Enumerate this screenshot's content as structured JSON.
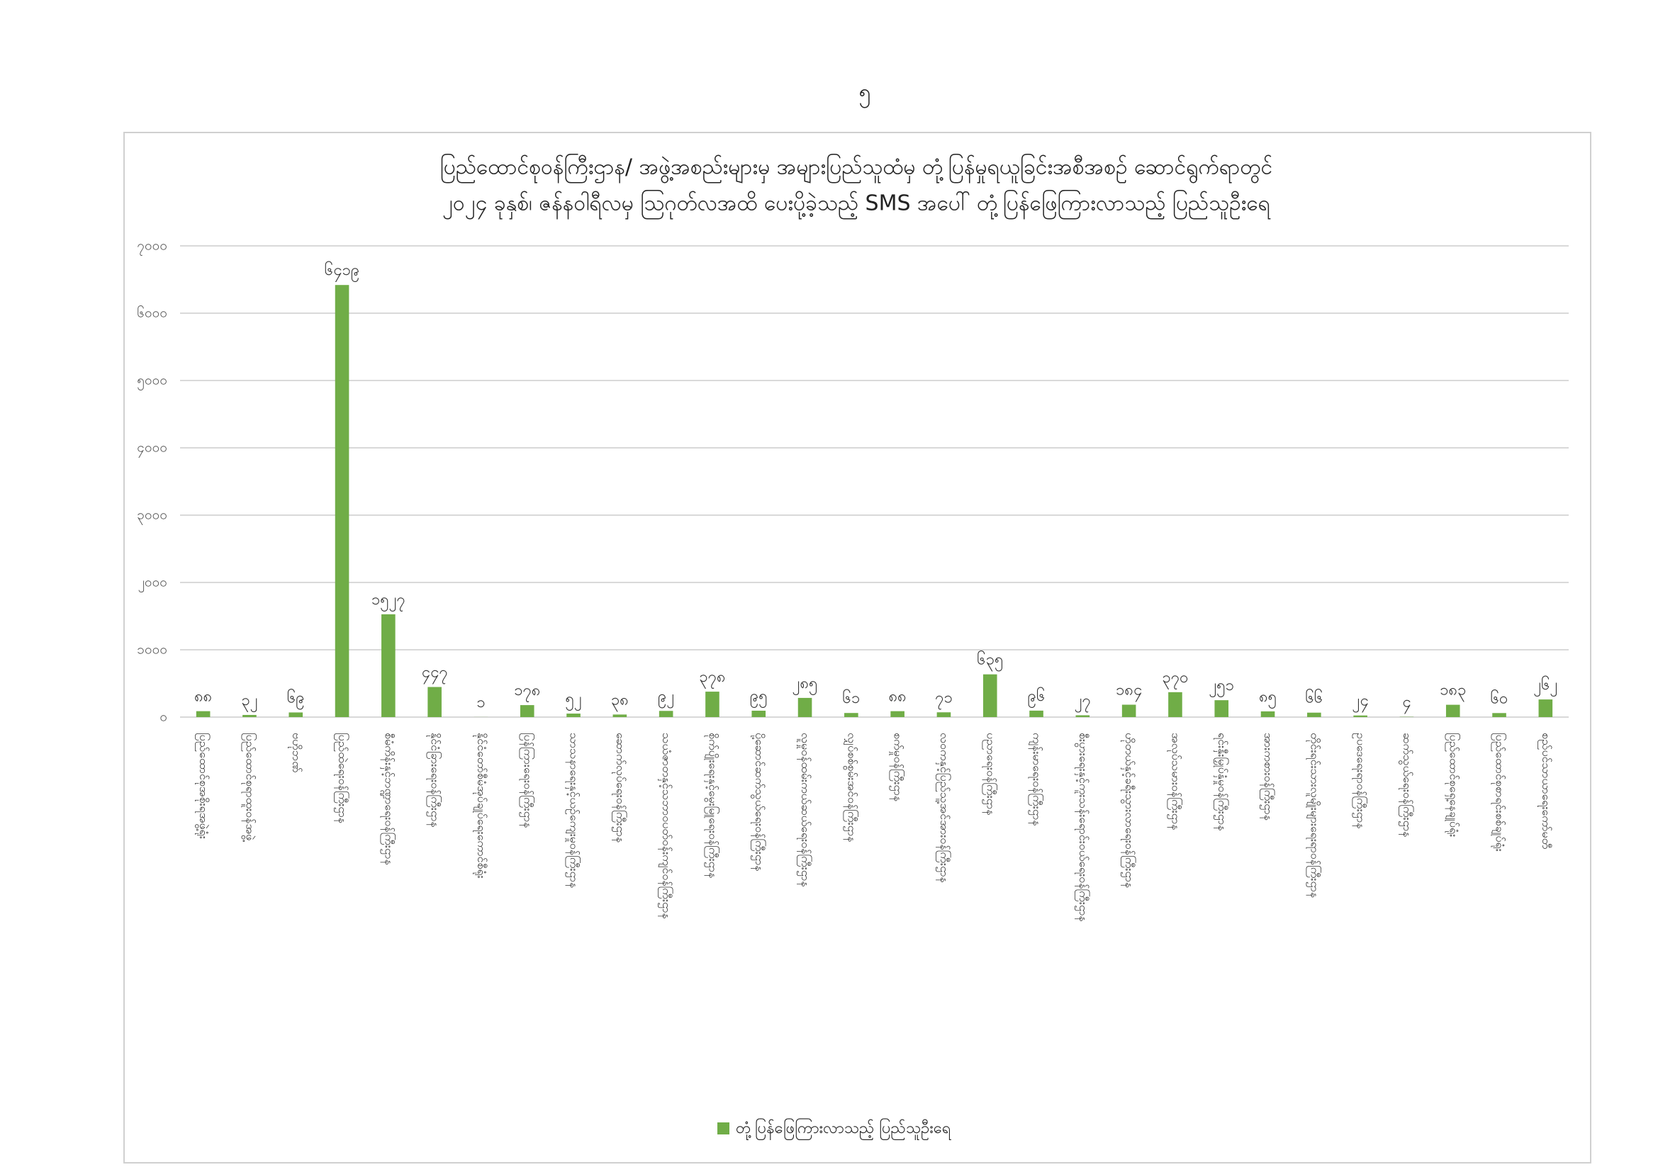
{
  "page_number": "၅",
  "chart_data": {
    "type": "bar",
    "title": [
      "ပြည်ထောင်စုဝန်ကြီးဌာန/ အဖွဲ့အစည်းများမှ အများပြည်သူထံမှ တုံ့ပြန်မှုရယူခြင်းအစီအစဉ် ဆောင်ရွက်ရာတွင်",
      "၂၀၂၄ ခုနှစ်၊ ဇန်နဝါရီလမှ ဩဂုတ်လအထိ ပေးပို့ခဲ့သည့် SMS အပေါ် တုံ့ပြန်ဖြေကြားလာသည့် ပြည်သူဦးရေ"
    ],
    "categories": [
      "ပြည်ထောင်စုအစိုးရအဖွဲ့ရုံး",
      "ပြည်ထောင်စုရာထူးဝန်အဖွဲ့",
      "ဗဟိုဘဏ်",
      "ပြည်ထဲရေးဝန်ကြီးဌာန",
      "စီမံကိန်းနှင့်ဘဏ္ဍာရေးဝန်ကြီးဌာန",
      "နိုင်ငံခြားရေးဝန်ကြီးဌာန",
      "နိုင်ငံတော်စီမံအုပ်ချုပ်ရေးကောင်စီရုံး",
      "ပြန်ကြားရေးဝန်ကြီးဌာန",
      "သာသနာရေးနှင့်ယဉ်ကျေးမှုဝန်ကြီးဌာန",
      "ဆောက်လုပ်ရေးဝန်ကြီးဌာန",
      "သယံဇာတနှင့်သဘာဝပတ်ဝန်းကျင်ဝန်ကြီးဌာန",
      "စိုက်ပျိုးရေးနှင့်မွေးမြူရေးဝန်ကြီးဌာန",
      "ပို့ဆောင်ဆက်သွယ်ရေးဝန်ကြီးဌာန",
      "လူမှုဝန်ထမ်းကယ်ဆယ်ရေးဝန်ကြီးဌာန",
      "လျှပ်စစ်စွမ်းအင်ဝန်ကြီးဌာန",
      "စက်မှုဝန်ကြီးဌာန",
      "လဝကနှင့်ပြည်သူ့အင်အားဝန်ကြီးဌာန",
      "ပညာရေးဝန်ကြီးဌာန",
      "ကျန်းမာရေးဝန်ကြီးဌာန",
      "စီးပွားရေးနှင့်ကူးသန်းရောင်းဝယ်ရေးဝန်ကြီးဌာန",
      "ဟိုတယ်နှင့်ခရီးသွားလာရေးဝန်ကြီးဌာန",
      "အလုပ်သမားဝန်ကြီးဌာန",
      "ရင်းနှီးမြှုပ်နှံမှုဝန်ကြီးဌာန",
      "အားကစားဝန်ကြီးဌာန",
      "တိုင်းရင်းသားလူမျိုးများရေးရာဝန်ကြီးဌာန",
      "ဥပဒေရေးရာဝန်ကြီးဌာန",
      "ဆက်သွယ်ရေးဝန်ကြီးဌာန",
      "ပြည်ထောင်စုရှေ့နေချုပ်ရုံး",
      "ပြည်ထောင်စုစာရင်းစစ်ချုပ်ရုံး",
      "စည်ပင်သာယာရေးကော်မတီ"
    ],
    "values": [
      88,
      32,
      69,
      6419,
      1527,
      447,
      1,
      178,
      52,
      38,
      92,
      378,
      95,
      285,
      61,
      88,
      71,
      635,
      96,
      27,
      184,
      370,
      251,
      85,
      66,
      24,
      4,
      183,
      60,
      262
    ],
    "value_labels": [
      "၈၈",
      "၃၂",
      "၆၉",
      "၆၄၁၉",
      "၁၅၂၇",
      "၄၄၇",
      "၁",
      "၁၇၈",
      "၅၂",
      "၃၈",
      "၉၂",
      "၃၇၈",
      "၉၅",
      "၂၈၅",
      "၆၁",
      "၈၈",
      "၇၁",
      "၆၃၅",
      "၉၆",
      "၂၇",
      "၁၈၄",
      "၃၇၀",
      "၂၅၁",
      "၈၅",
      "၆၆",
      "၂၄",
      "၄",
      "၁၈၃",
      "၆၀",
      "၂၆၂"
    ],
    "series_name": "တုံ့ပြန်ဖြေကြားလာသည့် ပြည်သူဦးရေ",
    "color": "#70ad47",
    "ylim": [
      0,
      7000
    ],
    "yticks": [
      {
        "value": 0,
        "label": "၀"
      },
      {
        "value": 1000,
        "label": "၁၀၀၀"
      },
      {
        "value": 2000,
        "label": "၂၀၀၀"
      },
      {
        "value": 3000,
        "label": "၃၀၀၀"
      },
      {
        "value": 4000,
        "label": "၄၀၀၀"
      },
      {
        "value": 5000,
        "label": "၅၀၀၀"
      },
      {
        "value": 6000,
        "label": "၆၀၀၀"
      },
      {
        "value": 7000,
        "label": "၇၀၀၀"
      }
    ],
    "grid": true,
    "legend": "bottom"
  }
}
